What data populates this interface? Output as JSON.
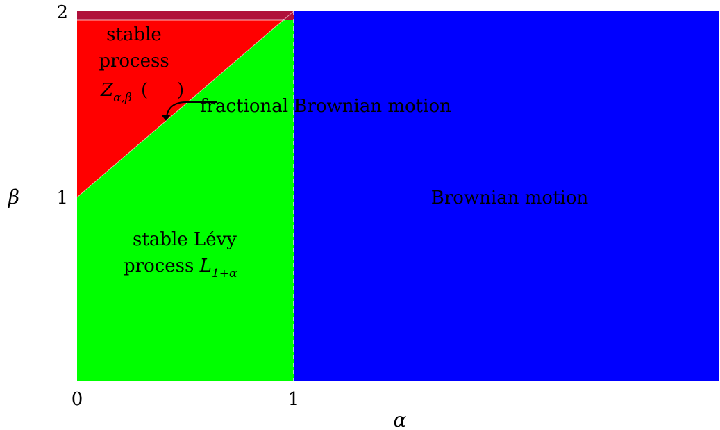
{
  "axes": {
    "x_symbol": "α",
    "y_symbol": "β",
    "x_ticks": [
      "0",
      "1"
    ],
    "y_ticks": [
      "1",
      "2"
    ]
  },
  "regions": {
    "stable_process": {
      "line1": "stable",
      "line2": "process",
      "symbol_main": "Z",
      "symbol_sub": "α,β",
      "symbol_paren_open": "(",
      "symbol_paren_close": ")",
      "color": "#ff0000"
    },
    "stable_levy": {
      "line1": "stable Lévy",
      "line2_text": "process ",
      "line2_main": "L",
      "line2_sub": "1+α",
      "color": "#00ff00"
    },
    "brownian": {
      "label": "Brownian motion",
      "color": "#0000ff"
    },
    "top_band": {
      "color": "#b0103a"
    }
  },
  "annotation": {
    "label": "fractional Brownian motion"
  }
}
